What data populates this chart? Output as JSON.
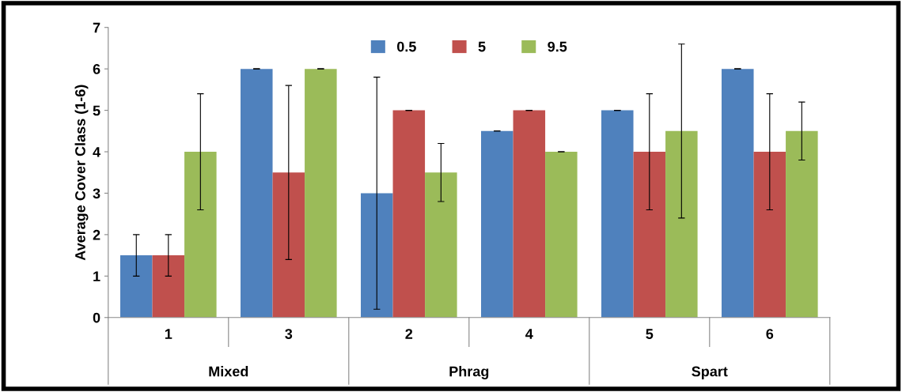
{
  "chart_data": {
    "type": "bar",
    "ylabel": "Average Cover Class (1-6)",
    "categories": [
      "1",
      "3",
      "2",
      "4",
      "5",
      "6"
    ],
    "series": [
      {
        "name": "0.5",
        "color": "#4f81bd",
        "values": [
          1.5,
          6,
          3,
          4.5,
          5,
          6
        ],
        "errors": [
          0.5,
          0,
          2.8,
          0,
          0,
          0
        ]
      },
      {
        "name": "5",
        "color": "#c0504d",
        "values": [
          1.5,
          3.5,
          5,
          5,
          4,
          4
        ],
        "errors": [
          0.5,
          2.1,
          0,
          0,
          1.4,
          1.4
        ]
      },
      {
        "name": "9.5",
        "color": "#9bbb59",
        "values": [
          4,
          6,
          3.5,
          4,
          4.5,
          4.5
        ],
        "errors": [
          1.4,
          0,
          0.7,
          0,
          2.1,
          0.7
        ]
      }
    ],
    "annotations": [
      "Mixed",
      "Phrag",
      "Spart"
    ],
    "ylim": [
      0,
      7
    ],
    "yticks": [
      0,
      1,
      2,
      3,
      4,
      5,
      6,
      7
    ],
    "grid": false,
    "legend": "top"
  }
}
